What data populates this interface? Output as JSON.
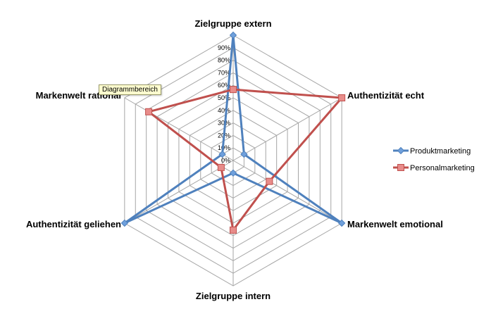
{
  "chart_data": {
    "type": "radar",
    "axes": [
      "Zielgruppe extern",
      "Authentizität echt",
      "Markenwelt emotional",
      "Zielgruppe intern",
      "Authentizität geliehen",
      "Markenwelt rational"
    ],
    "ticks": [
      "0%",
      "10%",
      "20%",
      "30%",
      "40%",
      "50%",
      "60%",
      "70%",
      "80%",
      "90%"
    ],
    "rmax": 90,
    "series": [
      {
        "name": "Produktmarketing",
        "values": [
          90,
          9,
          90,
          9,
          90,
          9
        ],
        "color": "#4f81bd",
        "marker": "diamond"
      },
      {
        "name": "Personalmarketing",
        "values": [
          51,
          90,
          30,
          50,
          10,
          70
        ],
        "color": "#c0504d",
        "marker": "square"
      }
    ],
    "legend_position": "right",
    "grid": true
  },
  "tooltip": {
    "text": "Diagrammbereich"
  }
}
